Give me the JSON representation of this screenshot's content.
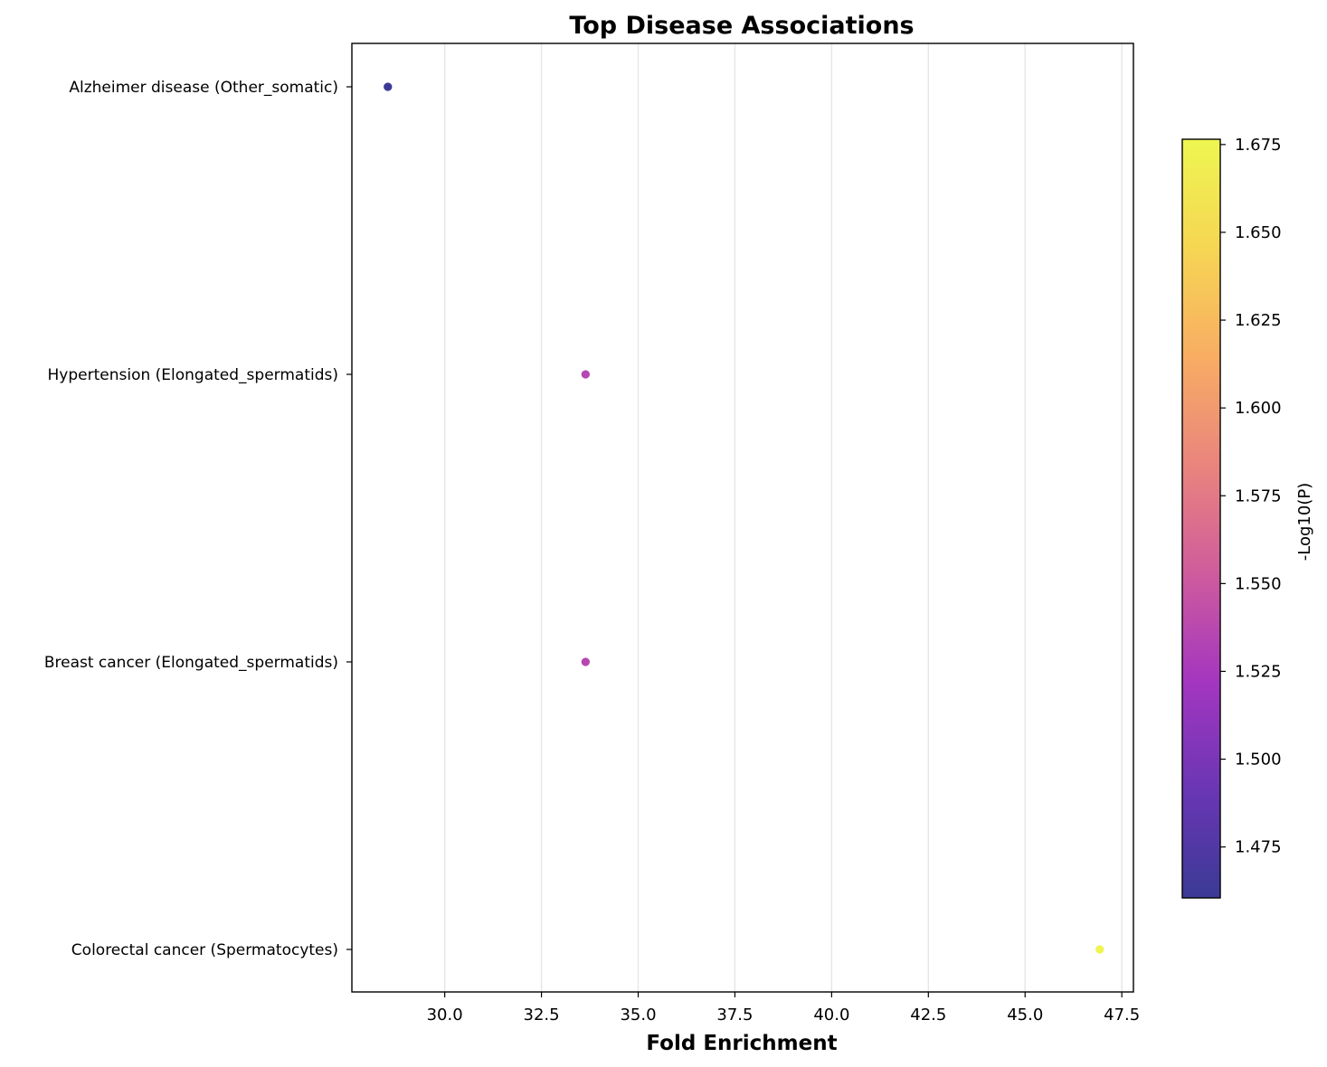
{
  "chart_data": {
    "type": "scatter",
    "title": "Top Disease Associations",
    "xlabel": "Fold Enrichment",
    "ylabel": "",
    "xlim": [
      27.6,
      47.8
    ],
    "x_ticks": [
      30.0,
      32.5,
      35.0,
      37.5,
      40.0,
      42.5,
      45.0,
      47.5
    ],
    "x_tick_labels": [
      "30.0",
      "32.5",
      "35.0",
      "37.5",
      "40.0",
      "42.5",
      "45.0",
      "47.5"
    ],
    "categories": [
      "Alzheimer disease (Other_somatic)",
      "Hypertension (Elongated_spermatids)",
      "Breast cancer (Elongated_spermatids)",
      "Colorectal cancer (Spermatocytes)"
    ],
    "points": [
      {
        "category": "Alzheimer disease (Other_somatic)",
        "x": 28.53,
        "color_value": 1.461
      },
      {
        "category": "Hypertension (Elongated_spermatids)",
        "x": 33.64,
        "color_value": 1.535
      },
      {
        "category": "Breast cancer (Elongated_spermatids)",
        "x": 33.64,
        "color_value": 1.535
      },
      {
        "category": "Colorectal cancer (Spermatocytes)",
        "x": 46.93,
        "color_value": 1.675
      }
    ],
    "grid": "x-only",
    "colorbar": {
      "label": "-Log10(P)",
      "colormap": "plasma",
      "range": [
        1.4605,
        1.6765
      ],
      "ticks": [
        1.475,
        1.5,
        1.525,
        1.55,
        1.575,
        1.6,
        1.625,
        1.65,
        1.675
      ],
      "tick_labels": [
        "1.475",
        "1.500",
        "1.525",
        "1.550",
        "1.575",
        "1.600",
        "1.625",
        "1.650",
        "1.675"
      ],
      "stops": [
        "#3b3a96",
        "#6a36b4",
        "#a436c0",
        "#cf5c9c",
        "#e9857d",
        "#f8ad63",
        "#f6d653",
        "#eef651"
      ]
    }
  }
}
